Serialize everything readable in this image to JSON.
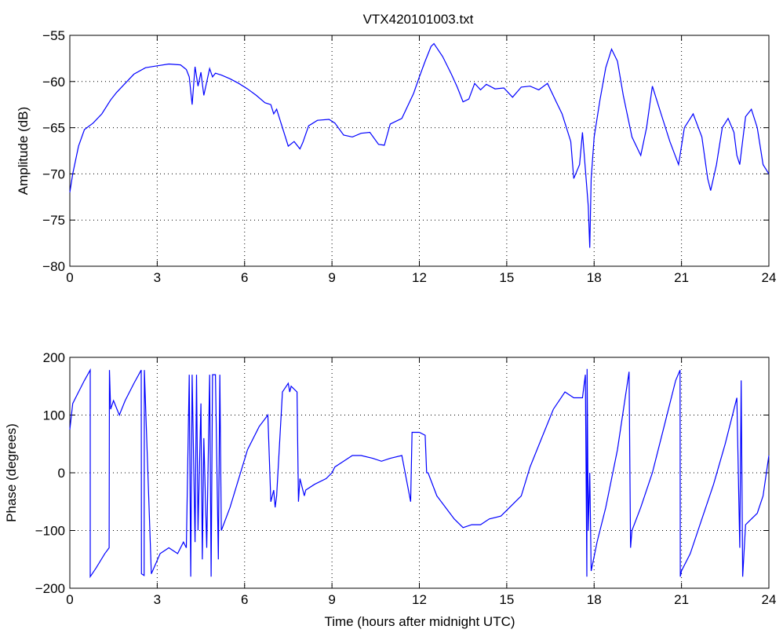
{
  "figure": {
    "title": "VTX420101003.txt",
    "xlabel": "Time (hours after midnight UTC)"
  },
  "chart_data": [
    {
      "type": "line",
      "title": "VTX420101003.txt",
      "xlabel": "",
      "ylabel": "Amplitude (dB)",
      "xlim": [
        0,
        24
      ],
      "ylim": [
        -80,
        -55
      ],
      "xticks": [
        0,
        3,
        6,
        9,
        12,
        15,
        18,
        21,
        24
      ],
      "yticks": [
        -80,
        -75,
        -70,
        -65,
        -60,
        -55
      ],
      "grid": true,
      "line_color": "#0000ff",
      "series": [
        {
          "x": [
            0,
            0.1,
            0.3,
            0.5,
            0.8,
            1.1,
            1.4,
            1.6,
            1.9,
            2.2,
            2.6,
            3.0,
            3.4,
            3.8,
            4.0,
            4.1,
            4.2,
            4.3,
            4.4,
            4.5,
            4.6,
            4.8,
            4.9,
            5.0,
            5.2,
            5.5,
            5.8,
            6.1,
            6.4,
            6.7,
            6.9,
            7.0,
            7.1,
            7.3,
            7.5,
            7.7,
            7.9,
            8.0,
            8.2,
            8.5,
            8.9,
            9.1,
            9.4,
            9.7,
            10.0,
            10.3,
            10.6,
            10.8,
            11.0,
            11.4,
            11.8,
            12.0,
            12.2,
            12.4,
            12.5,
            12.8,
            13.1,
            13.3,
            13.5,
            13.7,
            13.9,
            14.1,
            14.3,
            14.6,
            14.9,
            15.2,
            15.5,
            15.8,
            16.1,
            16.4,
            16.7,
            16.9,
            17.0,
            17.2,
            17.3,
            17.5,
            17.6,
            17.7,
            17.8,
            17.85,
            17.9,
            18.0,
            18.2,
            18.4,
            18.6,
            18.8,
            19.0,
            19.3,
            19.6,
            19.8,
            20.0,
            20.3,
            20.6,
            20.9,
            21.1,
            21.4,
            21.7,
            21.9,
            22.0,
            22.2,
            22.4,
            22.6,
            22.8,
            22.9,
            23.0,
            23.2,
            23.4,
            23.6,
            23.8,
            24.0
          ],
          "y": [
            -72,
            -70,
            -67,
            -65.2,
            -64.5,
            -63.5,
            -62,
            -61.2,
            -60.2,
            -59.2,
            -58.5,
            -58.3,
            -58.1,
            -58.2,
            -58.7,
            -59.5,
            -62.5,
            -58.4,
            -60.5,
            -59,
            -61.5,
            -58.6,
            -59.5,
            -59.1,
            -59.3,
            -59.7,
            -60.2,
            -60.8,
            -61.5,
            -62.3,
            -62.5,
            -63.5,
            -63,
            -65,
            -67,
            -66.5,
            -67.3,
            -66.6,
            -64.8,
            -64.2,
            -64.1,
            -64.5,
            -65.8,
            -66,
            -65.6,
            -65.5,
            -66.8,
            -66.9,
            -64.6,
            -64,
            -61.3,
            -59.5,
            -57.8,
            -56.2,
            -55.9,
            -57.3,
            -59.2,
            -60.6,
            -62.2,
            -61.9,
            -60.2,
            -60.9,
            -60.3,
            -60.8,
            -60.7,
            -61.7,
            -60.6,
            -60.5,
            -60.9,
            -60.2,
            -62.2,
            -63.5,
            -64.5,
            -66.5,
            -70.5,
            -69,
            -65.5,
            -69.5,
            -73.5,
            -78,
            -70.5,
            -66,
            -62,
            -58.5,
            -56.5,
            -57.8,
            -61.5,
            -66,
            -68,
            -65,
            -60.5,
            -63.5,
            -66.5,
            -69,
            -65,
            -63.5,
            -66,
            -70.5,
            -71.8,
            -69,
            -65,
            -64,
            -65.5,
            -68,
            -69,
            -63.8,
            -63,
            -65,
            -69,
            -70
          ]
        }
      ]
    },
    {
      "type": "line",
      "title": "",
      "xlabel": "Time (hours after midnight UTC)",
      "ylabel": "Phase (degrees)",
      "xlim": [
        0,
        24
      ],
      "ylim": [
        -200,
        200
      ],
      "xticks": [
        0,
        3,
        6,
        9,
        12,
        15,
        18,
        21,
        24
      ],
      "yticks": [
        -200,
        -100,
        0,
        100,
        200
      ],
      "grid": true,
      "line_color": "#0000ff",
      "series": [
        {
          "x": [
            0,
            0.1,
            0.3,
            0.5,
            0.7,
            0.7,
            0.9,
            1.2,
            1.35,
            1.36,
            1.4,
            1.5,
            1.7,
            1.9,
            2.2,
            2.45,
            2.46,
            2.55,
            2.56,
            2.8,
            3.1,
            3.4,
            3.7,
            3.9,
            4.0,
            4.1,
            4.15,
            4.2,
            4.3,
            4.35,
            4.4,
            4.5,
            4.55,
            4.6,
            4.7,
            4.8,
            4.85,
            4.9,
            5.0,
            5.1,
            5.15,
            5.2,
            5.5,
            5.8,
            6.1,
            6.5,
            6.8,
            6.9,
            7.0,
            7.05,
            7.1,
            7.3,
            7.5,
            7.55,
            7.6,
            7.8,
            7.85,
            7.9,
            8.0,
            8.05,
            8.1,
            8.4,
            8.8,
            9.0,
            9.1,
            9.4,
            9.7,
            10.0,
            10.4,
            10.7,
            11.0,
            11.4,
            11.7,
            11.75,
            11.8,
            12.0,
            12.2,
            12.25,
            12.3,
            12.6,
            12.9,
            13.2,
            13.5,
            13.8,
            14.1,
            14.4,
            14.8,
            15.1,
            15.5,
            15.8,
            16.2,
            16.6,
            17.0,
            17.3,
            17.6,
            17.7,
            17.75,
            17.76,
            17.8,
            17.85,
            17.9,
            18.1,
            18.4,
            18.8,
            19.2,
            19.25,
            19.3,
            19.6,
            20.0,
            20.4,
            20.8,
            20.95,
            20.96,
            21.0,
            21.3,
            21.7,
            22.1,
            22.5,
            22.9,
            23.0,
            23.05,
            23.1,
            23.2,
            23.4,
            23.6,
            23.8,
            24.0
          ],
          "y": [
            75,
            120,
            140,
            160,
            178,
            -180,
            -165,
            -140,
            -130,
            178,
            110,
            125,
            100,
            125,
            155,
            178,
            -175,
            -178,
            178,
            -175,
            -140,
            -130,
            -140,
            -120,
            -130,
            170,
            -180,
            170,
            -120,
            170,
            -100,
            120,
            -150,
            60,
            -130,
            170,
            -180,
            170,
            170,
            -150,
            170,
            -100,
            -60,
            -10,
            40,
            80,
            100,
            -50,
            -30,
            -60,
            -40,
            140,
            155,
            140,
            150,
            140,
            -50,
            -10,
            -30,
            -40,
            -30,
            -20,
            -10,
            0,
            10,
            20,
            30,
            30,
            25,
            20,
            25,
            30,
            -50,
            70,
            70,
            70,
            65,
            0,
            0,
            -40,
            -60,
            -80,
            -95,
            -90,
            -90,
            -80,
            -75,
            -60,
            -40,
            10,
            60,
            110,
            140,
            130,
            130,
            170,
            -180,
            180,
            -100,
            0,
            -170,
            -120,
            -60,
            40,
            175,
            -130,
            -100,
            -60,
            0,
            80,
            160,
            178,
            -180,
            -170,
            -140,
            -80,
            -20,
            50,
            130,
            -130,
            160,
            -180,
            -90,
            -80,
            -70,
            -40,
            30
          ]
        }
      ]
    }
  ]
}
